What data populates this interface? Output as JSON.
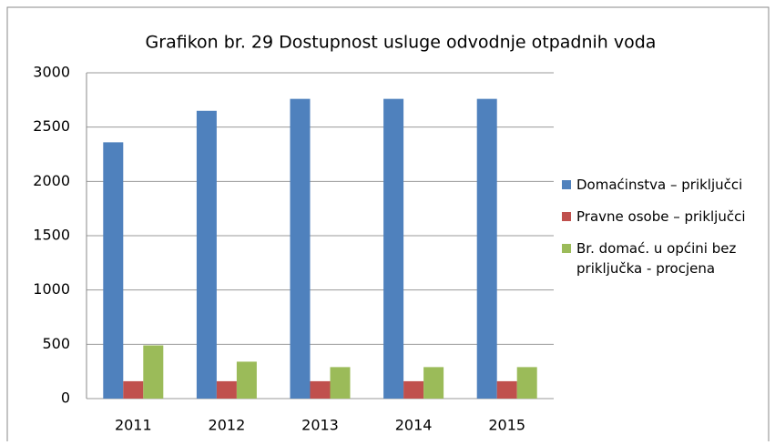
{
  "chart_data": {
    "type": "bar",
    "title": "Grafikon br. 29 Dostupnost  usluge odvodnje otpadnih voda",
    "categories": [
      "2011",
      "2012",
      "2013",
      "2014",
      "2015"
    ],
    "series": [
      {
        "name": "Domaćinstva – priključci",
        "color": "#4f81bd",
        "values": [
          2360,
          2650,
          2760,
          2760,
          2760
        ]
      },
      {
        "name": "Pravne osobe – priključci",
        "color": "#c0504d",
        "values": [
          160,
          160,
          160,
          160,
          160
        ]
      },
      {
        "name": "Br. domać. u općini bez priključka - procjena",
        "color": "#9bbb59",
        "values": [
          490,
          340,
          290,
          290,
          290
        ]
      }
    ],
    "ylim": [
      0,
      3000
    ],
    "yticks": [
      0,
      500,
      1000,
      1500,
      2000,
      2500,
      3000
    ],
    "grid": true,
    "legend": "right"
  }
}
